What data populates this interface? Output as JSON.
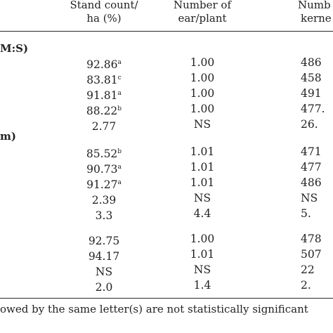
{
  "header": {
    "col1_line1": "Stand count/",
    "col1_line2": "ha (%)",
    "col2_line1": "Number of",
    "col2_line2": "ear/plant",
    "col3_line1": "Numb",
    "col3_line2": "kerne"
  },
  "sections": [
    {
      "label": "M:S)",
      "rows": [
        {
          "stand": "92.86",
          "stand_sup": "a",
          "ear": "1.00",
          "kernel": "486"
        },
        {
          "stand": "83.81",
          "stand_sup": "c",
          "ear": "1.00",
          "kernel": "458"
        },
        {
          "stand": "91.81",
          "stand_sup": "a",
          "ear": "1.00",
          "kernel": "491"
        },
        {
          "stand": "88.22",
          "stand_sup": "b",
          "ear": "1.00",
          "kernel": "477."
        },
        {
          "stand": "2.77",
          "stand_sup": "",
          "ear": "NS",
          "kernel": "26."
        }
      ]
    },
    {
      "label": "m)",
      "rows": [
        {
          "stand": "85.52",
          "stand_sup": "b",
          "ear": "1.01",
          "kernel": "471"
        },
        {
          "stand": "90.73",
          "stand_sup": "a",
          "ear": "1.01",
          "kernel": "477"
        },
        {
          "stand": "91.27",
          "stand_sup": "a",
          "ear": "1.01",
          "kernel": "486"
        },
        {
          "stand": "2.39",
          "stand_sup": "",
          "ear": "NS",
          "kernel": "NS"
        },
        {
          "stand": "3.3",
          "stand_sup": "",
          "ear": "4.4",
          "kernel": "5."
        }
      ]
    },
    {
      "label": "",
      "rows": [
        {
          "stand": "92.75",
          "stand_sup": "",
          "ear": "1.00",
          "kernel": "478"
        },
        {
          "stand": "94.17",
          "stand_sup": "",
          "ear": "1.01",
          "kernel": "507"
        },
        {
          "stand": "NS",
          "stand_sup": "",
          "ear": "NS",
          "kernel": "22"
        },
        {
          "stand": "2.0",
          "stand_sup": "",
          "ear": "1.4",
          "kernel": "2."
        }
      ]
    }
  ],
  "footnote": "owed by the same letter(s) are not statistically significant"
}
